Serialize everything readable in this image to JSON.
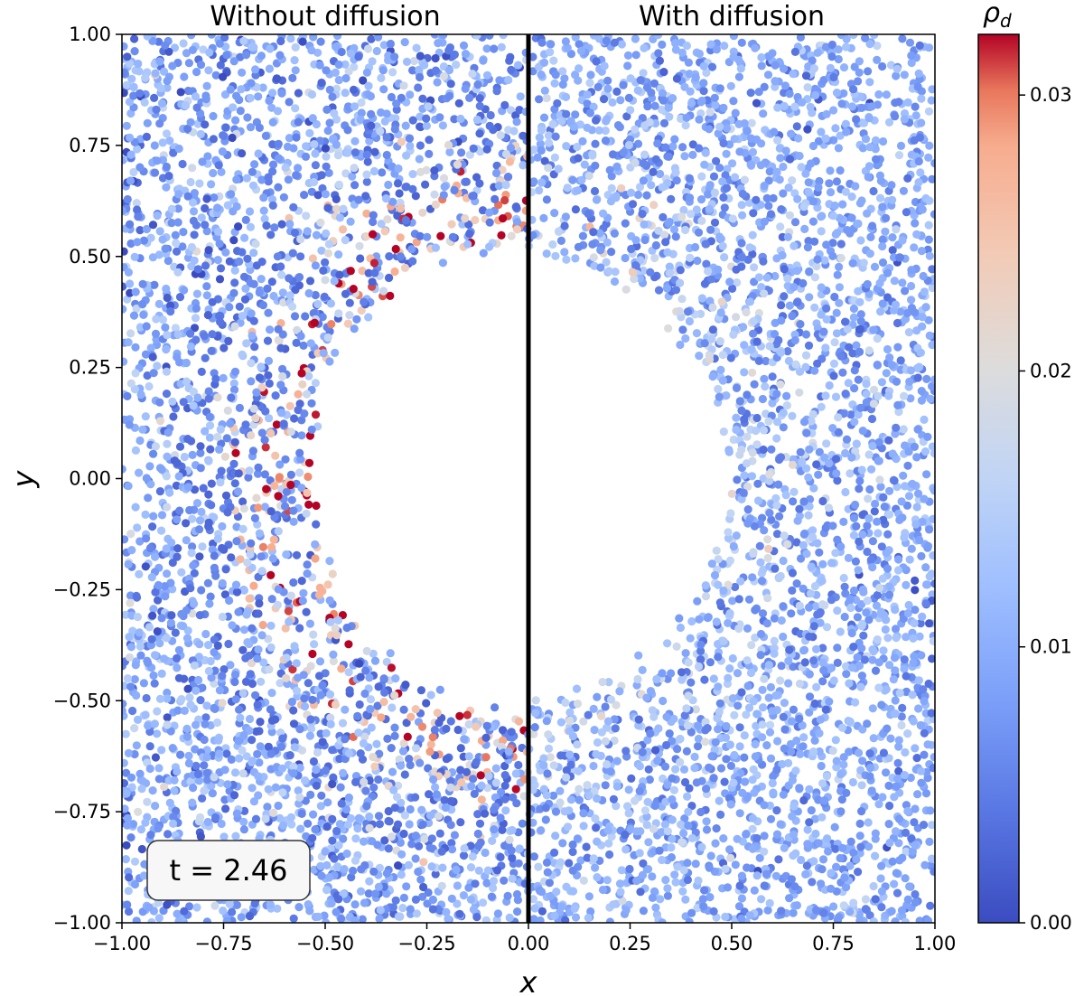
{
  "chart_data": {
    "type": "scatter",
    "xlabel": "x",
    "ylabel": "y",
    "xlim": [
      -1.0,
      1.0
    ],
    "ylim": [
      -1.0,
      1.0
    ],
    "x_ticks": [
      -1.0,
      -0.75,
      -0.5,
      -0.25,
      0.0,
      0.25,
      0.5,
      0.75,
      1.0
    ],
    "x_tick_labels": [
      "−1.00",
      "−0.75",
      "−0.50",
      "−0.25",
      "0.00",
      "0.25",
      "0.50",
      "0.75",
      "1.00"
    ],
    "y_ticks": [
      1.0,
      0.75,
      0.5,
      0.25,
      0.0,
      -0.25,
      -0.5,
      -0.75,
      -1.0
    ],
    "y_tick_labels": [
      "1.00",
      "0.75",
      "0.50",
      "0.25",
      "0.00",
      "−0.25",
      "−0.50",
      "−0.75",
      "−1.00"
    ],
    "panels": [
      {
        "title": "Without diffusion",
        "x_range": [
          -1.0,
          0.0
        ],
        "void_center": [
          0.0,
          0.0
        ],
        "void_radius": 0.54,
        "ring_width": 0.28,
        "ring_peak_density": 0.033
      },
      {
        "title": "With diffusion",
        "x_range": [
          0.0,
          1.0
        ],
        "void_center": [
          0.0,
          0.0
        ],
        "void_radius": 0.5,
        "ring_width": 0.34,
        "ring_peak_density": 0.021
      }
    ],
    "divider_x": 0.0,
    "background_density": 0.009,
    "colorbar": {
      "label": "ρ",
      "label_subscript": "d",
      "colormap": "coolwarm",
      "vmin": 0.0,
      "vmax": 0.0322,
      "ticks": [
        0.0,
        0.01,
        0.02,
        0.03
      ],
      "tick_labels": [
        "0.00",
        "0.01",
        "0.02",
        "0.03"
      ]
    },
    "annotation": {
      "text": "t = 2.46",
      "x": -0.84,
      "y": -0.885
    },
    "colors": {
      "divider": "#000000",
      "annotation_fill": "#f7f7f7",
      "annotation_edge": "#333333"
    }
  }
}
